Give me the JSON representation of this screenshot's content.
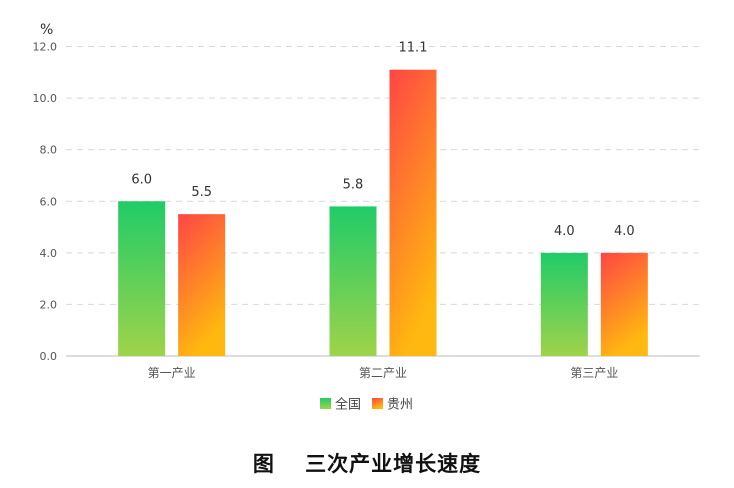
{
  "caption": "图　 三次产业增长速度",
  "chart_data": {
    "type": "bar",
    "ylabel": "%",
    "ylim": [
      0,
      12
    ],
    "yticks": [
      "0.0",
      "2.0",
      "4.0",
      "6.0",
      "8.0",
      "10.0",
      "12.0"
    ],
    "grid": true,
    "legend_position": "bottom-center",
    "categories": [
      "第一产业",
      "第二产业",
      "第三产业"
    ],
    "series": [
      {
        "name": "全国",
        "values": [
          6.0,
          5.8,
          4.0
        ],
        "labels": [
          "6.0",
          "5.8",
          "4.0"
        ],
        "color_top": "#20cc68",
        "color_bottom": "#9fd34a"
      },
      {
        "name": "贵州",
        "values": [
          5.5,
          11.1,
          4.0
        ],
        "labels": [
          "5.5",
          "11.1",
          "4.0"
        ],
        "color_top": "#ff4545",
        "color_bottom": "#ffb80f"
      }
    ]
  }
}
